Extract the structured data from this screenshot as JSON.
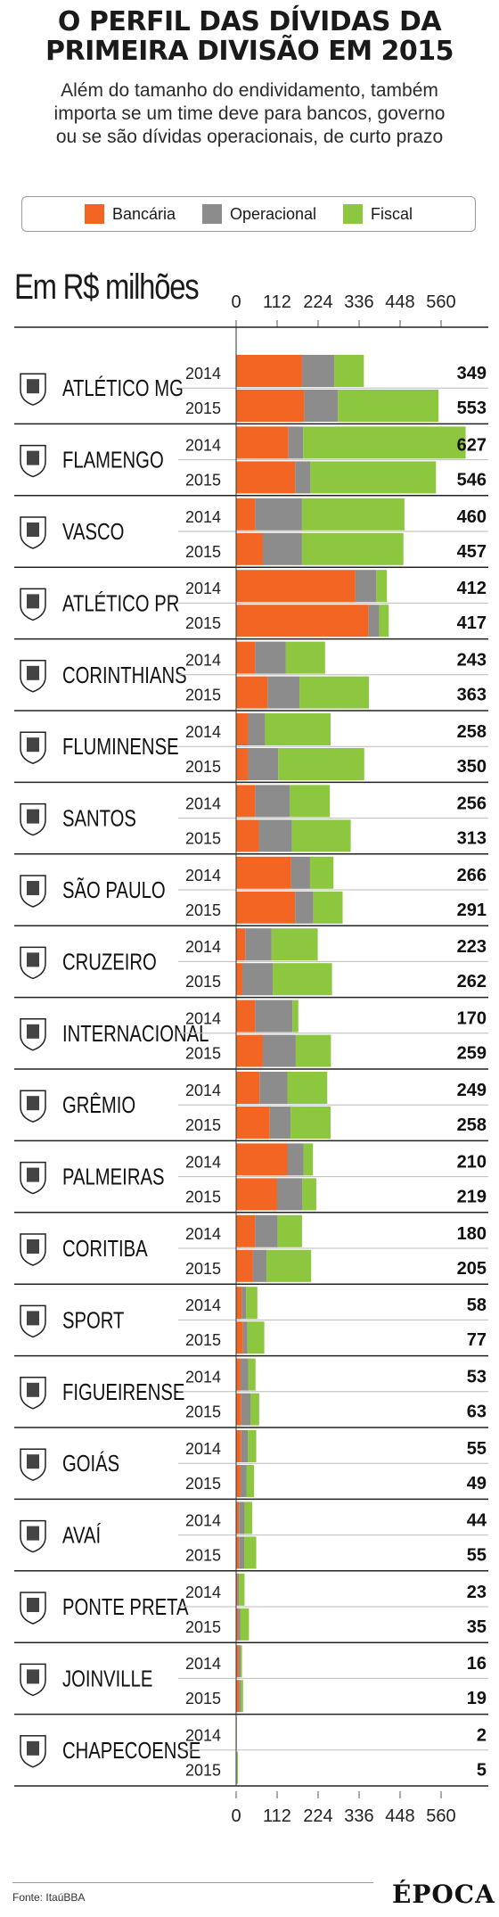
{
  "title_lines": [
    "O PERFIL DAS DÍVIDAS DA",
    "PRIMEIRA DIVISÃO EM 2015"
  ],
  "subtitle_lines": [
    "Além do tamanho do endividamento, também",
    "importa se um time deve para bancos, governo",
    "ou se são dívidas operacionais, de curto prazo"
  ],
  "units_label": "Em R$ milhões",
  "source": "Fonte: ItaúBBA",
  "logo_text": "ÉPOCA",
  "colors": {
    "bancaria": "#f26522",
    "operacional": "#8c8c8c",
    "fiscal": "#8dc63f",
    "divider": "#222222",
    "axis": "#555555"
  },
  "chart_data": {
    "type": "bar",
    "orientation": "horizontal",
    "stacked": true,
    "title": "O PERFIL DAS DÍVIDAS DA PRIMEIRA DIVISÃO EM 2015",
    "subtitle": "Além do tamanho do endividamento, também importa se um time deve para bancos, governo ou se são dívidas operacionais, de curto prazo",
    "xlabel": "Em R$ milhões",
    "ylabel": "",
    "xlim": [
      0,
      630
    ],
    "xticks": [
      "0",
      "112",
      "224",
      "336",
      "448",
      "560"
    ],
    "xtick_values": [
      0,
      112,
      224,
      336,
      448,
      560
    ],
    "legend": [
      "Bancária",
      "Operacional",
      "Fiscal"
    ],
    "legend_position": "top",
    "grid": false,
    "series_names": [
      "Bancária",
      "Operacional",
      "Fiscal"
    ],
    "teams": [
      {
        "name": "ATLÉTICO MG",
        "crest": "atletico-mg-crest",
        "years": [
          {
            "year": "2014",
            "total": 349,
            "bancaria": 180,
            "operacional": 88,
            "fiscal": 81
          },
          {
            "year": "2015",
            "total": 553,
            "bancaria": 186,
            "operacional": 92,
            "fiscal": 275
          }
        ]
      },
      {
        "name": "FLAMENGO",
        "crest": "flamengo-crest",
        "years": [
          {
            "year": "2014",
            "total": 627,
            "bancaria": 143,
            "operacional": 40,
            "fiscal": 444
          },
          {
            "year": "2015",
            "total": 546,
            "bancaria": 161,
            "operacional": 42,
            "fiscal": 343
          }
        ]
      },
      {
        "name": "VASCO",
        "crest": "vasco-crest",
        "years": [
          {
            "year": "2014",
            "total": 460,
            "bancaria": 52,
            "operacional": 128,
            "fiscal": 280
          },
          {
            "year": "2015",
            "total": 457,
            "bancaria": 73,
            "operacional": 107,
            "fiscal": 277
          }
        ]
      },
      {
        "name": "ATLÉTICO PR",
        "crest": "atletico-pr-crest",
        "years": [
          {
            "year": "2014",
            "total": 412,
            "bancaria": 326,
            "operacional": 57,
            "fiscal": 29
          },
          {
            "year": "2015",
            "total": 417,
            "bancaria": 362,
            "operacional": 29,
            "fiscal": 26
          }
        ]
      },
      {
        "name": "CORINTHIANS",
        "crest": "corinthians-crest",
        "years": [
          {
            "year": "2014",
            "total": 243,
            "bancaria": 52,
            "operacional": 84,
            "fiscal": 107
          },
          {
            "year": "2015",
            "total": 363,
            "bancaria": 86,
            "operacional": 87,
            "fiscal": 190
          }
        ]
      },
      {
        "name": "FLUMINENSE",
        "crest": "fluminense-crest",
        "years": [
          {
            "year": "2014",
            "total": 258,
            "bancaria": 33,
            "operacional": 46,
            "fiscal": 179
          },
          {
            "year": "2015",
            "total": 350,
            "bancaria": 33,
            "operacional": 82,
            "fiscal": 235
          }
        ]
      },
      {
        "name": "SANTOS",
        "crest": "santos-crest",
        "years": [
          {
            "year": "2014",
            "total": 256,
            "bancaria": 52,
            "operacional": 95,
            "fiscal": 109
          },
          {
            "year": "2015",
            "total": 313,
            "bancaria": 62,
            "operacional": 90,
            "fiscal": 161
          }
        ]
      },
      {
        "name": "SÃO PAULO",
        "crest": "sao-paulo-crest",
        "years": [
          {
            "year": "2014",
            "total": 266,
            "bancaria": 150,
            "operacional": 52,
            "fiscal": 64
          },
          {
            "year": "2015",
            "total": 291,
            "bancaria": 161,
            "operacional": 50,
            "fiscal": 80
          }
        ]
      },
      {
        "name": "CRUZEIRO",
        "crest": "cruzeiro-crest",
        "years": [
          {
            "year": "2014",
            "total": 223,
            "bancaria": 25,
            "operacional": 72,
            "fiscal": 126
          },
          {
            "year": "2015",
            "total": 262,
            "bancaria": 17,
            "operacional": 83,
            "fiscal": 162
          }
        ]
      },
      {
        "name": "INTERNACIONAL",
        "crest": "internacional-crest",
        "years": [
          {
            "year": "2014",
            "total": 170,
            "bancaria": 52,
            "operacional": 102,
            "fiscal": 16
          },
          {
            "year": "2015",
            "total": 259,
            "bancaria": 73,
            "operacional": 90,
            "fiscal": 96
          }
        ]
      },
      {
        "name": "GRÊMIO",
        "crest": "gremio-crest",
        "years": [
          {
            "year": "2014",
            "total": 249,
            "bancaria": 64,
            "operacional": 76,
            "fiscal": 109
          },
          {
            "year": "2015",
            "total": 258,
            "bancaria": 92,
            "operacional": 57,
            "fiscal": 109
          }
        ]
      },
      {
        "name": "PALMEIRAS",
        "crest": "palmeiras-crest",
        "years": [
          {
            "year": "2014",
            "total": 210,
            "bancaria": 140,
            "operacional": 44,
            "fiscal": 26
          },
          {
            "year": "2015",
            "total": 219,
            "bancaria": 112,
            "operacional": 69,
            "fiscal": 38
          }
        ]
      },
      {
        "name": "CORITIBA",
        "crest": "coritiba-crest",
        "years": [
          {
            "year": "2014",
            "total": 180,
            "bancaria": 52,
            "operacional": 61,
            "fiscal": 67
          },
          {
            "year": "2015",
            "total": 205,
            "bancaria": 46,
            "operacional": 37,
            "fiscal": 122
          }
        ]
      },
      {
        "name": "SPORT",
        "crest": "sport-crest",
        "years": [
          {
            "year": "2014",
            "total": 58,
            "bancaria": 15,
            "operacional": 12,
            "fiscal": 31
          },
          {
            "year": "2015",
            "total": 77,
            "bancaria": 19,
            "operacional": 12,
            "fiscal": 46
          }
        ]
      },
      {
        "name": "FIGUEIRENSE",
        "crest": "figueirense-crest",
        "years": [
          {
            "year": "2014",
            "total": 53,
            "bancaria": 12,
            "operacional": 21,
            "fiscal": 20
          },
          {
            "year": "2015",
            "total": 63,
            "bancaria": 14,
            "operacional": 25,
            "fiscal": 24
          }
        ]
      },
      {
        "name": "GOIÁS",
        "crest": "goias-crest",
        "years": [
          {
            "year": "2014",
            "total": 55,
            "bancaria": 14,
            "operacional": 18,
            "fiscal": 23
          },
          {
            "year": "2015",
            "total": 49,
            "bancaria": 12,
            "operacional": 16,
            "fiscal": 21
          }
        ]
      },
      {
        "name": "AVAÍ",
        "crest": "avai-crest",
        "years": [
          {
            "year": "2014",
            "total": 44,
            "bancaria": 8,
            "operacional": 15,
            "fiscal": 21
          },
          {
            "year": "2015",
            "total": 55,
            "bancaria": 8,
            "operacional": 14,
            "fiscal": 33
          }
        ]
      },
      {
        "name": "PONTE PRETA",
        "crest": "ponte-preta-crest",
        "years": [
          {
            "year": "2014",
            "total": 23,
            "bancaria": 4,
            "operacional": 4,
            "fiscal": 15
          },
          {
            "year": "2015",
            "total": 35,
            "bancaria": 5,
            "operacional": 6,
            "fiscal": 24
          }
        ]
      },
      {
        "name": "JOINVILLE",
        "crest": "joinville-crest",
        "years": [
          {
            "year": "2014",
            "total": 16,
            "bancaria": 7,
            "operacional": 5,
            "fiscal": 4
          },
          {
            "year": "2015",
            "total": 19,
            "bancaria": 8,
            "operacional": 5,
            "fiscal": 6
          }
        ]
      },
      {
        "name": "CHAPECOENSE",
        "crest": "chapecoense-crest",
        "years": [
          {
            "year": "2014",
            "total": 2,
            "bancaria": 0,
            "operacional": 1,
            "fiscal": 1
          },
          {
            "year": "2015",
            "total": 5,
            "bancaria": 1,
            "operacional": 1,
            "fiscal": 3
          }
        ]
      }
    ]
  }
}
